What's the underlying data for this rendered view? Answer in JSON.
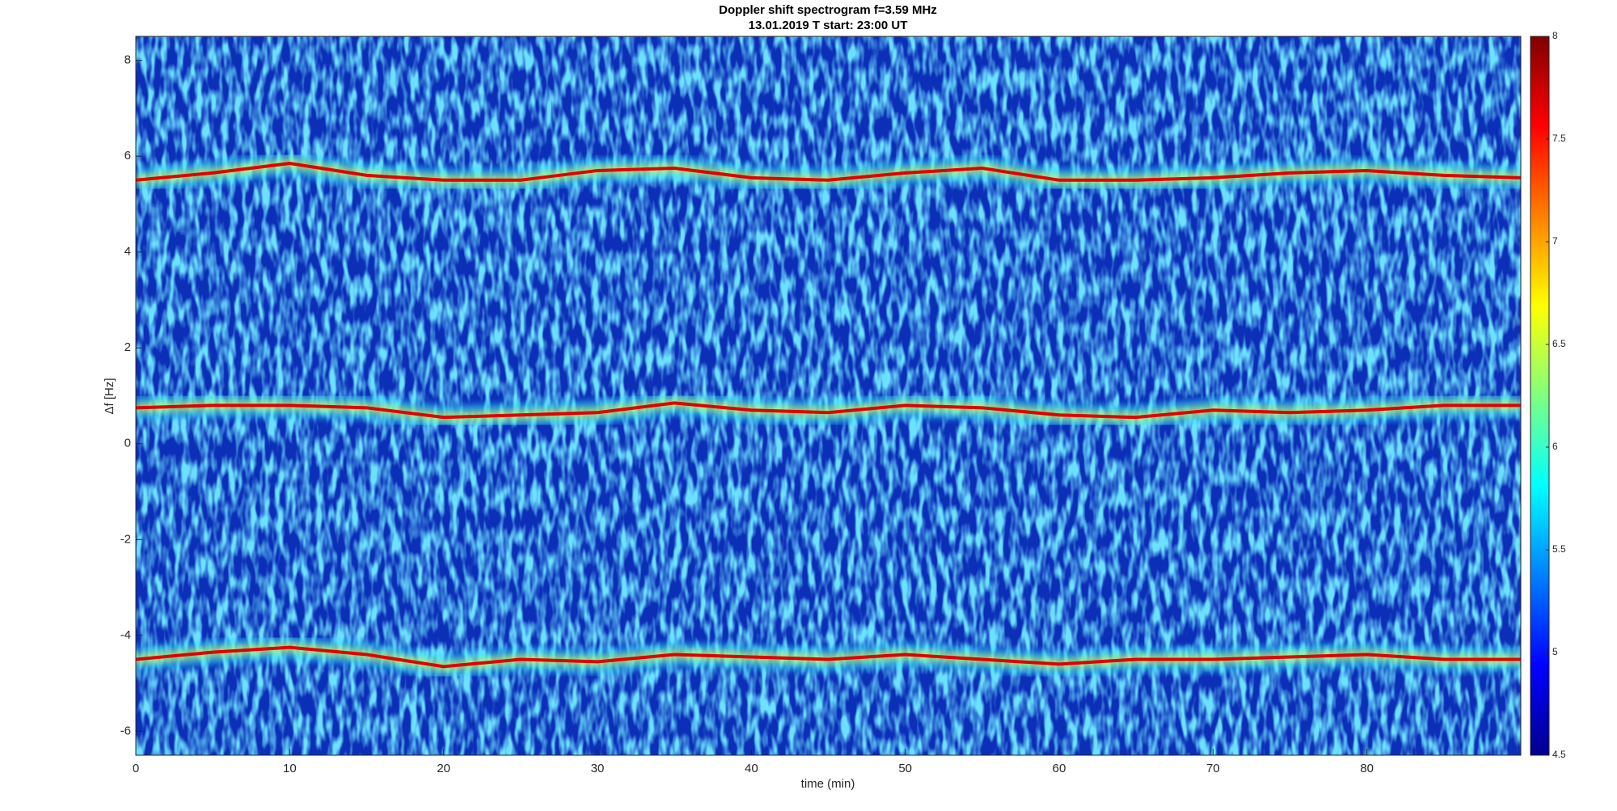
{
  "chart_data": {
    "type": "spectrogram",
    "title": "Doppler shift spectrogram f=3.59 MHz",
    "subtitle": "13.01.2019   T start: 23:00 UT",
    "xlabel": "time (min)",
    "ylabel": "Δf [Hz]",
    "xlim": [
      0,
      90
    ],
    "xticks": [
      0,
      10,
      20,
      30,
      40,
      50,
      60,
      70,
      80
    ],
    "ylim": [
      -6.5,
      8.5
    ],
    "yticks": [
      -6,
      -4,
      -2,
      0,
      2,
      4,
      6,
      8
    ],
    "clim": [
      4.5,
      8
    ],
    "cticks": [
      4.5,
      5,
      5.5,
      6,
      6.5,
      7,
      7.5,
      8
    ],
    "colormap": "jet",
    "x": [
      0,
      5,
      10,
      15,
      20,
      25,
      30,
      35,
      40,
      45,
      50,
      55,
      60,
      65,
      70,
      75,
      80,
      85,
      90
    ],
    "series": [
      {
        "color": "#e00000",
        "values": [
          5.5,
          5.65,
          5.85,
          5.6,
          5.5,
          5.5,
          5.7,
          5.75,
          5.55,
          5.5,
          5.65,
          5.75,
          5.5,
          5.5,
          5.55,
          5.65,
          5.7,
          5.6,
          5.55
        ]
      },
      {
        "color": "#e00000",
        "values": [
          0.75,
          0.8,
          0.8,
          0.75,
          0.55,
          0.6,
          0.65,
          0.85,
          0.7,
          0.65,
          0.8,
          0.75,
          0.6,
          0.55,
          0.7,
          0.65,
          0.7,
          0.8,
          0.8
        ]
      },
      {
        "color": "#e00000",
        "values": [
          -4.5,
          -4.35,
          -4.25,
          -4.4,
          -4.65,
          -4.5,
          -4.55,
          -4.4,
          -4.45,
          -4.5,
          -4.4,
          -4.5,
          -4.6,
          -4.5,
          -4.5,
          -4.45,
          -4.4,
          -4.5,
          -4.5
        ]
      }
    ]
  }
}
